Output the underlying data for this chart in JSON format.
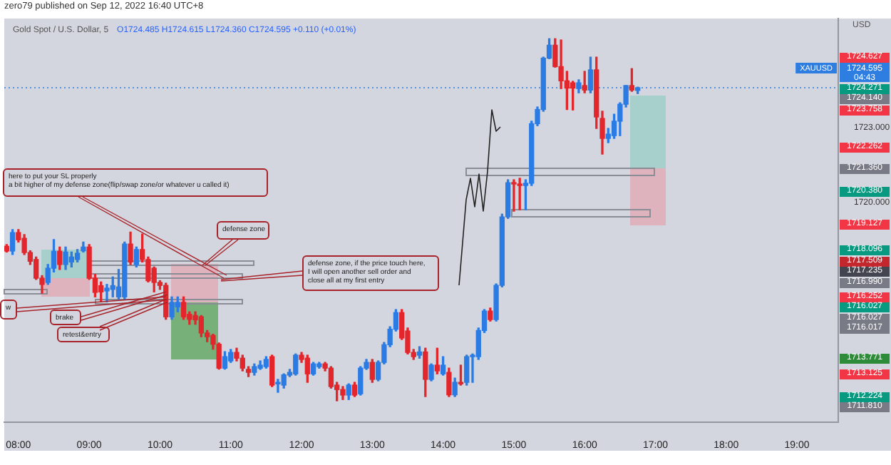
{
  "chart_data": {
    "type": "candlestick",
    "title": "Gold Spot / U.S. Dollar, 5",
    "subtitle": "O1724.485 H1724.615 L1724.360 C1724.595 +0.110 (+0.01%)",
    "x": [
      "2022-09-12T07:50",
      "2022-09-12T07:55",
      "2022-09-12T08:00",
      "2022-09-12T08:05",
      "2022-09-12T08:10",
      "2022-09-12T08:15",
      "2022-09-12T08:20",
      "2022-09-12T08:25",
      "2022-09-12T08:30",
      "2022-09-12T08:35",
      "2022-09-12T08:40",
      "2022-09-12T08:45",
      "2022-09-12T08:50",
      "2022-09-12T08:55",
      "2022-09-12T09:00",
      "2022-09-12T09:05",
      "2022-09-12T09:10",
      "2022-09-12T09:15",
      "2022-09-12T09:20",
      "2022-09-12T09:25",
      "2022-09-12T09:30",
      "2022-09-12T09:35",
      "2022-09-12T09:40",
      "2022-09-12T09:45",
      "2022-09-12T09:50",
      "2022-09-12T09:55",
      "2022-09-12T10:00",
      "2022-09-12T10:05",
      "2022-09-12T10:10",
      "2022-09-12T10:15",
      "2022-09-12T10:20",
      "2022-09-12T10:25",
      "2022-09-12T10:30",
      "2022-09-12T10:35",
      "2022-09-12T10:40",
      "2022-09-12T10:45",
      "2022-09-12T10:50",
      "2022-09-12T10:55",
      "2022-09-12T11:00",
      "2022-09-12T11:05",
      "2022-09-12T11:10",
      "2022-09-12T11:15",
      "2022-09-12T11:20",
      "2022-09-12T11:25",
      "2022-09-12T11:30",
      "2022-09-12T11:35",
      "2022-09-12T11:40",
      "2022-09-12T11:45",
      "2022-09-12T11:50",
      "2022-09-12T11:55",
      "2022-09-12T12:00",
      "2022-09-12T12:05",
      "2022-09-12T12:10",
      "2022-09-12T12:15",
      "2022-09-12T12:20",
      "2022-09-12T12:25",
      "2022-09-12T12:30",
      "2022-09-12T12:35",
      "2022-09-12T12:40",
      "2022-09-12T12:45",
      "2022-09-12T12:50",
      "2022-09-12T12:55",
      "2022-09-12T13:00",
      "2022-09-12T13:05",
      "2022-09-12T13:10",
      "2022-09-12T13:15",
      "2022-09-12T13:20",
      "2022-09-12T13:25",
      "2022-09-12T13:30",
      "2022-09-12T13:35",
      "2022-09-12T13:40",
      "2022-09-12T13:45",
      "2022-09-12T13:50",
      "2022-09-12T13:55",
      "2022-09-12T14:00",
      "2022-09-12T14:05",
      "2022-09-12T14:10",
      "2022-09-12T14:15",
      "2022-09-12T14:20",
      "2022-09-12T14:25",
      "2022-09-12T14:30",
      "2022-09-12T14:35",
      "2022-09-12T14:40",
      "2022-09-12T14:45",
      "2022-09-12T14:50",
      "2022-09-12T14:55",
      "2022-09-12T15:00",
      "2022-09-12T15:05",
      "2022-09-12T15:10",
      "2022-09-12T15:15",
      "2022-09-12T15:20",
      "2022-09-12T15:25",
      "2022-09-12T15:30",
      "2022-09-12T15:35",
      "2022-09-12T15:40",
      "2022-09-12T15:45",
      "2022-09-12T15:50",
      "2022-09-12T15:55",
      "2022-09-12T16:00",
      "2022-09-12T16:05",
      "2022-09-12T16:10",
      "2022-09-12T16:15",
      "2022-09-12T16:20",
      "2022-09-12T16:25",
      "2022-09-12T16:30",
      "2022-09-12T16:35",
      "2022-09-12T16:40",
      "2022-09-12T16:45"
    ],
    "ohlc": [
      [
        1718.23,
        1718.3,
        1718.0,
        1718.04
      ],
      [
        1718.04,
        1718.9,
        1717.9,
        1718.78
      ],
      [
        1718.78,
        1718.9,
        1718.4,
        1718.49
      ],
      [
        1718.55,
        1718.7,
        1717.9,
        1717.98
      ],
      [
        1717.98,
        1718.05,
        1717.5,
        1717.63
      ],
      [
        1717.7,
        1717.8,
        1716.9,
        1716.95
      ],
      [
        1716.95,
        1717.05,
        1716.35,
        1716.7
      ],
      [
        1716.78,
        1717.5,
        1716.7,
        1717.35
      ],
      [
        1717.35,
        1718.5,
        1717.2,
        1718.03
      ],
      [
        1718.03,
        1718.2,
        1717.3,
        1717.5
      ],
      [
        1717.5,
        1718.2,
        1717.3,
        1718.0
      ],
      [
        1717.6,
        1718.0,
        1717.4,
        1717.8
      ],
      [
        1717.7,
        1718.1,
        1717.6,
        1717.95
      ],
      [
        1718.05,
        1718.4,
        1718.0,
        1718.2
      ],
      [
        1718.2,
        1718.3,
        1716.9,
        1716.95
      ],
      [
        1716.95,
        1717.1,
        1716.2,
        1716.38
      ],
      [
        1716.65,
        1716.8,
        1716.0,
        1716.4
      ],
      [
        1716.44,
        1716.7,
        1716.0,
        1716.55
      ],
      [
        1716.5,
        1717.0,
        1716.2,
        1716.65
      ],
      [
        1716.2,
        1717.3,
        1716.1,
        1716.6
      ],
      [
        1716.2,
        1718.4,
        1716.1,
        1718.32
      ],
      [
        1718.32,
        1718.8,
        1717.5,
        1717.6
      ],
      [
        1717.5,
        1718.2,
        1717.4,
        1718.1
      ],
      [
        1718.1,
        1718.72,
        1717.6,
        1717.7
      ],
      [
        1717.7,
        1717.8,
        1716.8,
        1716.85
      ],
      [
        1717.35,
        1717.4,
        1716.4,
        1716.78
      ],
      [
        1716.78,
        1716.85,
        1716.5,
        1716.66
      ],
      [
        1716.66,
        1716.75,
        1715.3,
        1715.4
      ],
      [
        1715.4,
        1716.2,
        1715.3,
        1715.98
      ],
      [
        1715.8,
        1716.2,
        1715.6,
        1715.98
      ],
      [
        1715.98,
        1716.2,
        1715.3,
        1715.4
      ],
      [
        1715.5,
        1715.6,
        1715.1,
        1715.3
      ],
      [
        1715.45,
        1715.6,
        1715.1,
        1715.28
      ],
      [
        1715.4,
        1715.45,
        1714.6,
        1714.75
      ],
      [
        1714.75,
        1714.85,
        1714.4,
        1714.6
      ],
      [
        1714.65,
        1714.7,
        1714.1,
        1714.3
      ],
      [
        1714.3,
        1714.35,
        1713.3,
        1713.34
      ],
      [
        1713.34,
        1714.0,
        1713.3,
        1713.8
      ],
      [
        1713.63,
        1714.09,
        1713.57,
        1713.97
      ],
      [
        1713.97,
        1714.14,
        1713.63,
        1713.74
      ],
      [
        1713.74,
        1713.86,
        1713.23,
        1713.34
      ],
      [
        1713.29,
        1713.4,
        1713.0,
        1713.17
      ],
      [
        1713.17,
        1713.51,
        1713.06,
        1713.4
      ],
      [
        1713.34,
        1713.63,
        1713.29,
        1713.46
      ],
      [
        1713.4,
        1713.8,
        1713.34,
        1713.69
      ],
      [
        1713.8,
        1713.86,
        1712.6,
        1712.66
      ],
      [
        1712.71,
        1712.89,
        1712.37,
        1712.77
      ],
      [
        1712.66,
        1713.11,
        1712.54,
        1713.07
      ],
      [
        1713.06,
        1713.29,
        1713.0,
        1713.17
      ],
      [
        1713.11,
        1713.91,
        1713.06,
        1713.86
      ],
      [
        1713.86,
        1713.97,
        1713.57,
        1713.69
      ],
      [
        1713.74,
        1713.86,
        1712.77,
        1713.11
      ],
      [
        1713.11,
        1713.57,
        1713.06,
        1713.51
      ],
      [
        1713.4,
        1713.57,
        1713.34,
        1713.51
      ],
      [
        1713.51,
        1713.57,
        1713.23,
        1713.34
      ],
      [
        1713.34,
        1713.4,
        1712.54,
        1712.6
      ],
      [
        1712.66,
        1712.77,
        1712.03,
        1712.48
      ],
      [
        1712.48,
        1712.6,
        1712.08,
        1712.26
      ],
      [
        1712.26,
        1712.71,
        1712.08,
        1712.66
      ],
      [
        1712.66,
        1712.77,
        1712.2,
        1712.26
      ],
      [
        1712.31,
        1713.4,
        1712.26,
        1713.34
      ],
      [
        1713.34,
        1713.69,
        1713.29,
        1713.57
      ],
      [
        1713.57,
        1713.69,
        1712.77,
        1712.89
      ],
      [
        1712.89,
        1713.63,
        1712.83,
        1713.57
      ],
      [
        1713.57,
        1714.37,
        1713.51,
        1714.28
      ],
      [
        1714.28,
        1715.0,
        1714.2,
        1714.9
      ],
      [
        1714.9,
        1715.69,
        1714.83,
        1715.57
      ],
      [
        1715.57,
        1715.69,
        1714.49,
        1714.55
      ],
      [
        1714.83,
        1714.95,
        1713.91,
        1713.97
      ],
      [
        1713.97,
        1714.09,
        1713.69,
        1713.8
      ],
      [
        1713.86,
        1714.2,
        1713.74,
        1713.99
      ],
      [
        1713.99,
        1714.14,
        1712.2,
        1712.89
      ],
      [
        1712.89,
        1713.51,
        1712.83,
        1713.46
      ],
      [
        1713.46,
        1714.14,
        1713.11,
        1713.23
      ],
      [
        1713.11,
        1713.8,
        1713.06,
        1713.46
      ],
      [
        1713.17,
        1713.34,
        1712.2,
        1712.27
      ],
      [
        1712.27,
        1712.94,
        1712.2,
        1712.77
      ],
      [
        1712.77,
        1713.46,
        1712.66,
        1712.71
      ],
      [
        1712.77,
        1713.86,
        1712.66,
        1713.8
      ],
      [
        1713.8,
        1713.91,
        1712.77,
        1713.86
      ],
      [
        1713.8,
        1714.95,
        1713.69,
        1714.85
      ],
      [
        1714.85,
        1715.69,
        1714.77,
        1715.63
      ],
      [
        1715.63,
        1715.75,
        1715.23,
        1715.29
      ],
      [
        1715.29,
        1716.72,
        1715.23,
        1716.66
      ],
      [
        1716.66,
        1719.52,
        1716.6,
        1719.41
      ],
      [
        1719.41,
        1720.9,
        1719.35,
        1720.78
      ],
      [
        1720.78,
        1720.9,
        1719.64,
        1720.73
      ],
      [
        1720.73,
        1720.96,
        1719.7,
        1720.67
      ],
      [
        1720.67,
        1720.9,
        1719.7,
        1720.76
      ],
      [
        1720.76,
        1723.25,
        1720.67,
        1723.15
      ],
      [
        1723.15,
        1723.82,
        1723.07,
        1723.72
      ],
      [
        1723.72,
        1725.82,
        1723.65,
        1725.78
      ],
      [
        1725.78,
        1726.56,
        1725.76,
        1726.3
      ],
      [
        1726.3,
        1726.56,
        1725.42,
        1725.44
      ],
      [
        1725.44,
        1726.51,
        1724.56,
        1724.87
      ],
      [
        1724.87,
        1725.25,
        1723.72,
        1724.58
      ],
      [
        1724.79,
        1724.85,
        1723.7,
        1724.58
      ],
      [
        1724.56,
        1724.91,
        1724.39,
        1724.79
      ],
      [
        1724.68,
        1725.25,
        1724.39,
        1724.5
      ],
      [
        1724.5,
        1725.82,
        1724.39,
        1725.31
      ],
      [
        1725.31,
        1725.82,
        1722.96,
        1723.42
      ],
      [
        1723.36,
        1723.65,
        1721.93,
        1722.56
      ],
      [
        1722.56,
        1722.96,
        1722.39,
        1722.73
      ],
      [
        1722.67,
        1723.53,
        1722.56,
        1723.25
      ],
      [
        1723.25,
        1723.99,
        1722.67,
        1723.93
      ],
      [
        1723.93,
        1724.68,
        1723.82,
        1724.68
      ],
      [
        1724.68,
        1725.36,
        1724.45,
        1724.5
      ],
      [
        1724.485,
        1724.615,
        1724.36,
        1724.595
      ]
    ],
    "colors": [
      "#e2262c",
      "#2a7be4",
      "#e2262c",
      "#e2262c",
      "#e2262c",
      "#e2262c",
      "#e2262c",
      "#2a7be4",
      "#2a7be4",
      "#e2262c",
      "#2a7be4",
      "#2a7be4",
      "#2a7be4",
      "#2a7be4",
      "#e2262c",
      "#e2262c",
      "#e2262c",
      "#2a7be4",
      "#2a7be4",
      "#2a7be4",
      "#2a7be4",
      "#e2262c",
      "#2a7be4",
      "#e2262c",
      "#e2262c",
      "#e2262c",
      "#e2262c",
      "#e2262c",
      "#2a7be4",
      "#2a7be4",
      "#e2262c",
      "#e2262c",
      "#e2262c",
      "#e2262c",
      "#e2262c",
      "#e2262c",
      "#e2262c",
      "#2a7be4",
      "#2a7be4",
      "#e2262c",
      "#e2262c",
      "#e2262c",
      "#2a7be4",
      "#2a7be4",
      "#2a7be4",
      "#e2262c",
      "#2a7be4",
      "#2a7be4",
      "#2a7be4",
      "#2a7be4",
      "#e2262c",
      "#e2262c",
      "#2a7be4",
      "#2a7be4",
      "#e2262c",
      "#e2262c",
      "#e2262c",
      "#e2262c",
      "#2a7be4",
      "#e2262c",
      "#2a7be4",
      "#2a7be4",
      "#e2262c",
      "#2a7be4",
      "#2a7be4",
      "#2a7be4",
      "#2a7be4",
      "#e2262c",
      "#e2262c",
      "#e2262c",
      "#2a7be4",
      "#e2262c",
      "#2a7be4",
      "#e2262c",
      "#2a7be4",
      "#e2262c",
      "#2a7be4",
      "#e2262c",
      "#2a7be4",
      "#2a7be4",
      "#2a7be4",
      "#2a7be4",
      "#e2262c",
      "#2a7be4",
      "#2a7be4",
      "#2a7be4",
      "#e2262c",
      "#e2262c",
      "#2a7be4",
      "#2a7be4",
      "#2a7be4",
      "#2a7be4",
      "#2a7be4",
      "#e2262c",
      "#e2262c",
      "#e2262c",
      "#e2262c",
      "#2a7be4",
      "#e2262c",
      "#2a7be4",
      "#e2262c",
      "#e2262c",
      "#2a7be4",
      "#2a7be4",
      "#2a7be4",
      "#2a7be4",
      "#e2262c",
      "#2a7be4"
    ],
    "xlim": [
      "2022-09-12T07:48",
      "2022-09-12T19:35"
    ],
    "xticks": [
      {
        "value": "2022-09-12T08:00",
        "label": "08:00"
      },
      {
        "value": "2022-09-12T09:00",
        "label": "09:00"
      },
      {
        "value": "2022-09-12T10:00",
        "label": "10:00"
      },
      {
        "value": "2022-09-12T11:00",
        "label": "11:00"
      },
      {
        "value": "2022-09-12T12:00",
        "label": "12:00"
      },
      {
        "value": "2022-09-12T13:00",
        "label": "13:00"
      },
      {
        "value": "2022-09-12T14:00",
        "label": "14:00"
      },
      {
        "value": "2022-09-12T15:00",
        "label": "15:00"
      },
      {
        "value": "2022-09-12T16:00",
        "label": "16:00"
      },
      {
        "value": "2022-09-12T17:00",
        "label": "17:00"
      },
      {
        "value": "2022-09-12T18:00",
        "label": "18:00"
      },
      {
        "value": "2022-09-12T19:00",
        "label": "19:00"
      }
    ],
    "ylim": [
      1711.17,
      1727.37
    ],
    "yticks": [
      {
        "value": 1720,
        "label": "1720.000"
      },
      {
        "value": 1723,
        "label": "1723.000"
      }
    ],
    "ref_lines": [
      {
        "axis": "y",
        "value": 1724.595,
        "label": "1724.595",
        "color": "#2e7de1",
        "line_style": "dotted"
      }
    ],
    "annotations": [
      "zero79 published on Sep 12, 2022 16:40 UTC+8",
      "here to put your SL properly\na bit higher of my defense zone(flip/swap zone/or whatever u called it)",
      "defense zone",
      "defense zone, if the price touch here,\nI will open another sell order and\nclose all at my first entry",
      {
        "text": "brake",
        "x": "2022-09-12T10:05",
        "y": 1716.4
      },
      {
        "text": "retest&entry",
        "x": "2022-09-12T10:05",
        "y": 1716.1
      },
      {
        "text": "w",
        "x": "2022-09-12T10:05",
        "y": 1716.2
      },
      "XAUUSD",
      "04:43",
      "USD",
      "1724.627",
      "1724.271",
      "1724.140",
      "1723.758",
      "1722.262",
      "1721.360",
      "1720.380",
      "1719.127",
      "1718.096",
      "1717.509",
      "1717.235",
      "1716.990",
      "1716.252",
      "1716.027",
      "1716.027",
      "1716.017",
      "1713.771",
      "1713.125",
      "1712.224",
      "1711.810"
    ]
  }
}
